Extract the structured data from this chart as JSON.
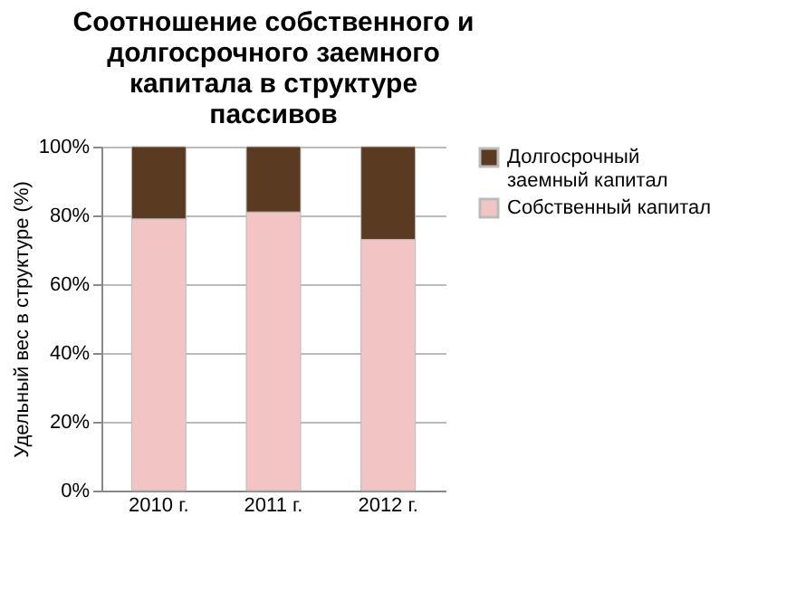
{
  "chart_data": {
    "type": "bar",
    "stacked": true,
    "title": "Соотношение собственного и долгосрочного заемного капитала в структуре пассивов",
    "ylabel": "Удельный вес в структуре (%)",
    "categories": [
      "2010 г.",
      "2011 г.",
      "2012 г."
    ],
    "series": [
      {
        "name": "Собственный капитал",
        "color": "#f2c4c4",
        "values": [
          79,
          81,
          73
        ]
      },
      {
        "name": "Долгосрочный заемный капитал",
        "color": "#5a3b22",
        "values": [
          21,
          19,
          27
        ]
      }
    ],
    "ylim": [
      0,
      100
    ],
    "yticks": [
      {
        "value": 0,
        "label": "0%"
      },
      {
        "value": 20,
        "label": "20%"
      },
      {
        "value": 40,
        "label": "40%"
      },
      {
        "value": 60,
        "label": "60%"
      },
      {
        "value": 80,
        "label": "80%"
      },
      {
        "value": 100,
        "label": "100%"
      }
    ],
    "grid": "y",
    "legend": "right"
  }
}
